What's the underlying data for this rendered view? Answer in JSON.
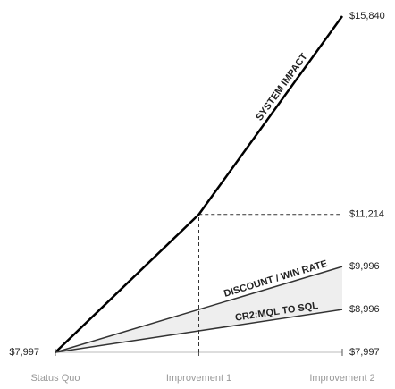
{
  "chart_data": {
    "type": "line",
    "categories": [
      "Status Quo",
      "Improvement 1",
      "Improvement 2"
    ],
    "series": [
      {
        "name": "SYSTEM IMPACT",
        "color": "#000000",
        "values": [
          7997,
          11214,
          15840
        ],
        "value_labels": [
          "$7,997",
          "$11,214",
          "$15,840"
        ]
      },
      {
        "name": "DISCOUNT / WIN RATE",
        "color": "#333333",
        "values": [
          7997,
          8997,
          9996
        ],
        "value_labels": [
          null,
          null,
          "$9,996"
        ]
      },
      {
        "name": "CR2:MQL TO SQL",
        "color": "#333333",
        "values": [
          7997,
          8497,
          8996
        ],
        "value_labels": [
          null,
          null,
          "$8,996"
        ]
      }
    ],
    "ylim": [
      7997,
      15840
    ],
    "yticks": [
      {
        "value": 7997,
        "label": "$7,997"
      }
    ]
  }
}
